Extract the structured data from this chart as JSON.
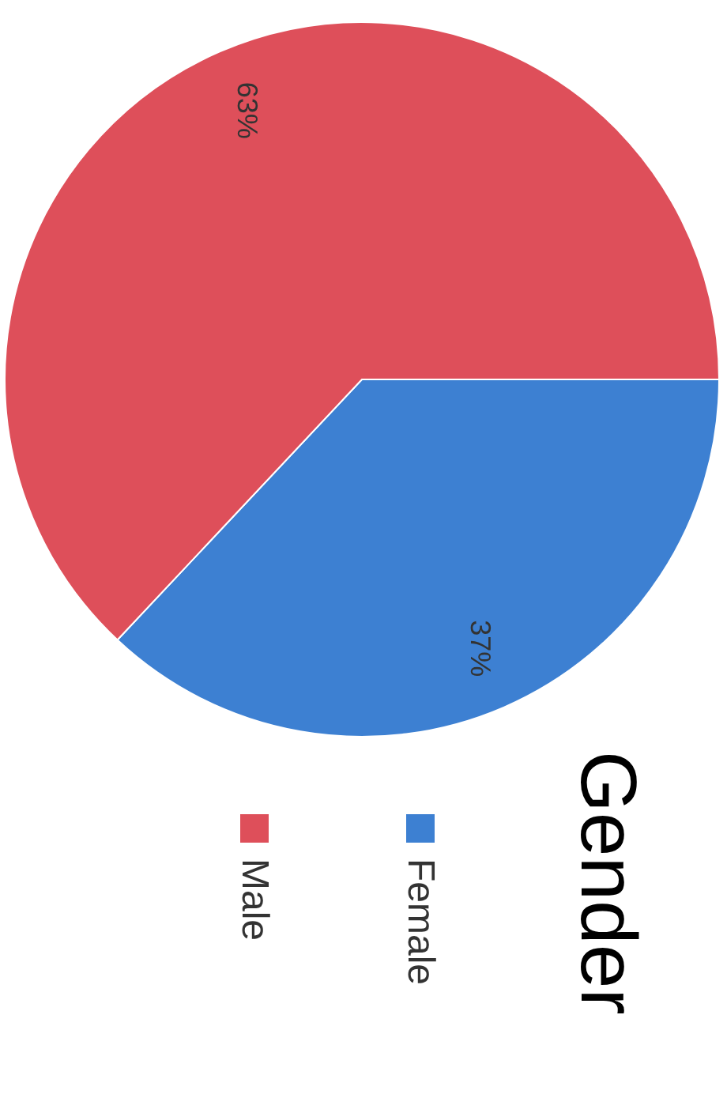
{
  "chart_data": {
    "type": "pie",
    "title": "Gender",
    "categories": [
      "Female",
      "Male"
    ],
    "values": [
      37,
      63
    ],
    "colors": [
      "#3d80d2",
      "#de4f5a"
    ],
    "value_labels": [
      "37%",
      "63%"
    ],
    "legend": "right"
  }
}
